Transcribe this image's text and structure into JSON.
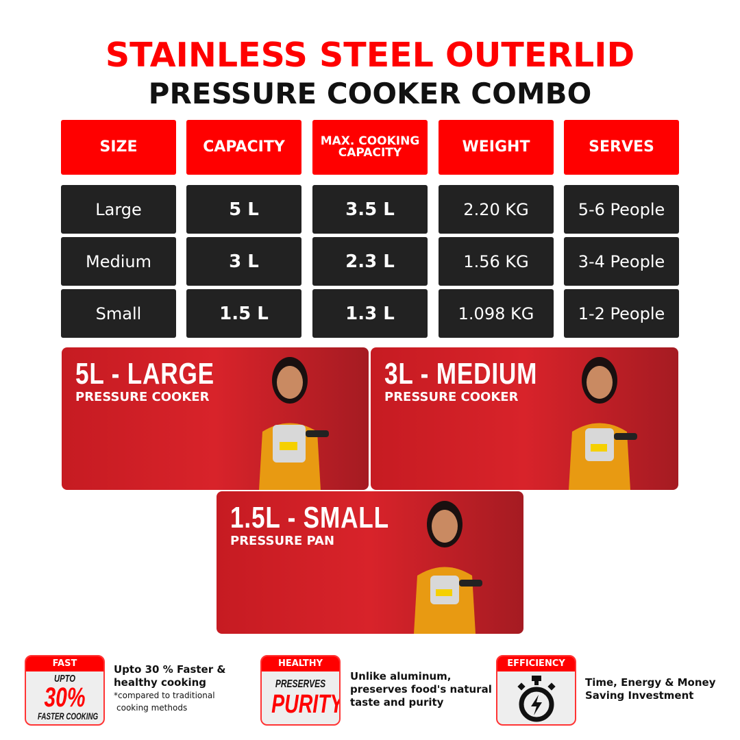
{
  "title": {
    "line1": "STAINLESS STEEL OUTERLID",
    "line2": "PRESSURE COOKER COMBO"
  },
  "table": {
    "headers": [
      "SIZE",
      "CAPACITY",
      "MAX. COOKING CAPACITY",
      "WEIGHT",
      "SERVES"
    ],
    "rows": [
      [
        "Large",
        "5 L",
        "3.5 L",
        "2.20 KG",
        "5-6 People"
      ],
      [
        "Medium",
        "3 L",
        "2.3 L",
        "1.56 KG",
        "3-4 People"
      ],
      [
        "Small",
        "1.5 L",
        "1.3 L",
        "1.098 KG",
        "1-2 People"
      ]
    ]
  },
  "banners": [
    {
      "title": "5L - LARGE",
      "subtitle": "PRESSURE COOKER"
    },
    {
      "title": "3L - MEDIUM",
      "subtitle": "PRESSURE COOKER"
    },
    {
      "title": "1.5L - SMALL",
      "subtitle": "PRESSURE PAN"
    }
  ],
  "features": [
    {
      "tag": "FAST",
      "l1": "UPTO",
      "l2": "30%",
      "l3": "FASTER COOKING",
      "text1": "Upto 30 % Faster &",
      "text2": "healthy cooking",
      "note1": "*compared to traditional",
      "note2": "cooking methods"
    },
    {
      "tag": "HEALTHY",
      "l1": "PRESERVES",
      "l2": "PURITY",
      "text1": "Unlike aluminum,",
      "text2": "preserves food's natural",
      "text3": "taste and purity"
    },
    {
      "tag": "EFFICIENCY",
      "icon": "stopwatch-lightning-icon",
      "text1": "Time, Energy & Money",
      "text2": "Saving Investment"
    }
  ],
  "colors": {
    "red": "#ff0000",
    "dark": "#222222",
    "banner": "#d8232a"
  }
}
